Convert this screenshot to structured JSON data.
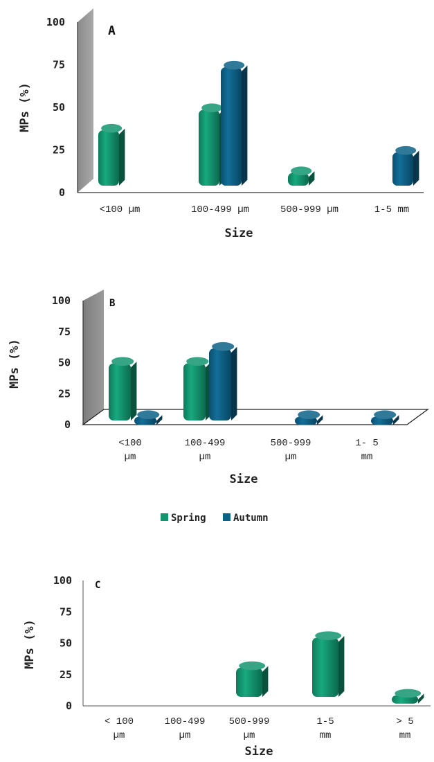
{
  "colors": {
    "spring": "#12956f",
    "autumn": "#0d6187"
  },
  "legend": {
    "spring": "Spring",
    "autumn": "Autumn"
  },
  "chart_data": [
    {
      "type": "bar",
      "panel_label": "A",
      "categories": [
        "<100 µm",
        "100-499 µm",
        "500-999 µm",
        "1-5 mm"
      ],
      "series": [
        {
          "name": "Spring",
          "values": [
            37,
            49,
            12,
            0
          ]
        },
        {
          "name": "Autumn",
          "values": [
            0,
            74,
            0,
            24
          ]
        }
      ],
      "ylabel": "MPs (%)",
      "xlabel": "Size",
      "yticks": [
        "100",
        "75",
        "50",
        "25",
        "0"
      ],
      "ylim": [
        0,
        100
      ]
    },
    {
      "type": "bar",
      "panel_label": "B",
      "categories": [
        "<100 µm",
        "100-499 µm",
        "500-999 µm",
        "1- 5 mm"
      ],
      "series": [
        {
          "name": "Spring",
          "values": [
            50,
            50,
            0,
            0
          ]
        },
        {
          "name": "Autumn",
          "values": [
            7,
            62,
            7,
            7
          ]
        }
      ],
      "ylabel": "MPs (%)",
      "xlabel": "Size",
      "yticks": [
        "100",
        "75",
        "50",
        "25",
        "0"
      ],
      "ylim": [
        0,
        100
      ]
    },
    {
      "type": "bar",
      "panel_label": "C",
      "categories": [
        "< 100 µm",
        "100-499 µm",
        "500-999 µm",
        "1-5 mm",
        "> 5 mm"
      ],
      "series": [
        {
          "name": "Spring",
          "values": [
            0,
            0,
            31,
            55,
            9
          ]
        }
      ],
      "ylabel": "MPs (%)",
      "xlabel": "Size",
      "yticks": [
        "100",
        "75",
        "50",
        "25",
        "0"
      ],
      "ylim": [
        0,
        100
      ]
    }
  ]
}
